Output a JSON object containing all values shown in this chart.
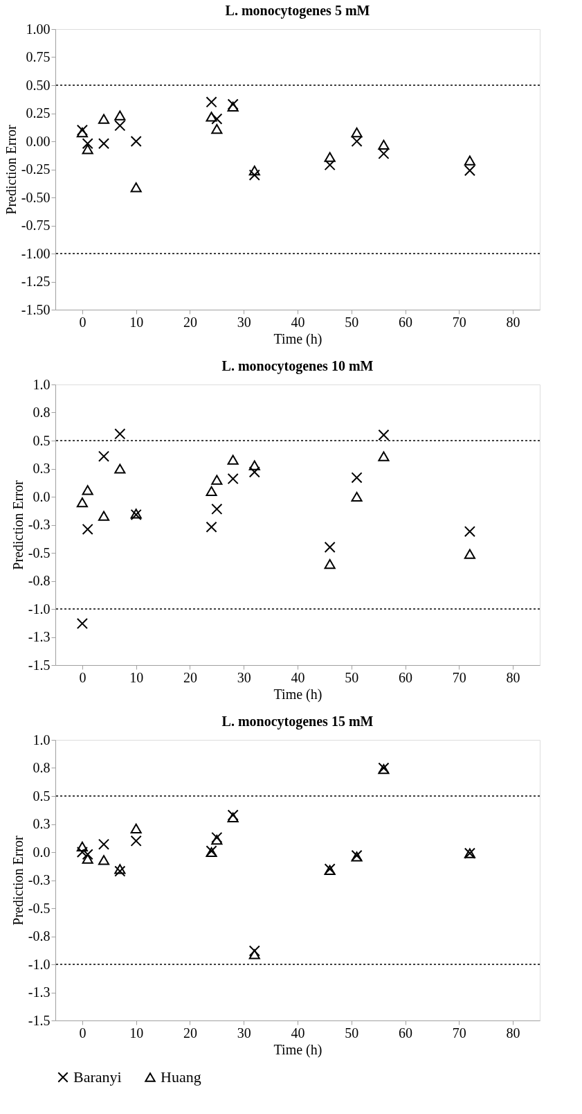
{
  "chart_data": [
    {
      "type": "scatter",
      "title": "L. monocytogenes 5 mM",
      "xlabel": "Time (h)",
      "ylabel": "Prediction Error",
      "x": [
        0,
        1,
        4,
        7,
        10,
        24,
        25,
        28,
        32,
        46,
        51,
        56,
        72
      ],
      "series": [
        {
          "name": "Baranyi",
          "color": "#000000",
          "marker": "cross",
          "values": [
            0.1,
            -0.02,
            -0.02,
            0.14,
            0.0,
            0.35,
            0.2,
            0.33,
            -0.3,
            -0.21,
            0.0,
            -0.11,
            -0.26
          ]
        },
        {
          "name": "Huang",
          "color": "#000000",
          "marker": "triangle",
          "values": [
            0.08,
            -0.07,
            0.2,
            0.23,
            -0.41,
            0.22,
            0.11,
            0.31,
            -0.26,
            -0.14,
            0.08,
            -0.03,
            -0.17
          ]
        }
      ],
      "xlim": [
        -5,
        85
      ],
      "xticks": [
        0,
        10,
        20,
        30,
        40,
        50,
        60,
        70,
        80
      ],
      "ylim": [
        -1.5,
        1.0
      ],
      "yticks": [
        {
          "value": 1.0,
          "label": "1.00"
        },
        {
          "value": 0.75,
          "label": "0.75"
        },
        {
          "value": 0.5,
          "label": "0.50"
        },
        {
          "value": 0.25,
          "label": "0.25"
        },
        {
          "value": 0.0,
          "label": "0.00"
        },
        {
          "value": -0.25,
          "label": "-0.25"
        },
        {
          "value": -0.5,
          "label": "-0.50"
        },
        {
          "value": -0.75,
          "label": "-0.75"
        },
        {
          "value": -1.0,
          "label": "-1.00"
        },
        {
          "value": -1.25,
          "label": "-1.25"
        },
        {
          "value": -1.5,
          "label": "-1.50"
        }
      ],
      "ref_lines": [
        {
          "axis": "y",
          "value": 0.5,
          "color": "#000000",
          "line_style": "dotted"
        },
        {
          "axis": "y",
          "value": -1.0,
          "color": "#000000",
          "line_style": "dotted"
        }
      ],
      "grid": false,
      "legend": "bottom"
    },
    {
      "type": "scatter",
      "title": "L. monocytogenes 10 mM",
      "xlabel": "Time (h)",
      "ylabel": "Prediction Error",
      "x": [
        0,
        1,
        4,
        7,
        10,
        24,
        25,
        28,
        32,
        46,
        51,
        56,
        72
      ],
      "series": [
        {
          "name": "Baranyi",
          "color": "#000000",
          "marker": "cross",
          "values": [
            -1.13,
            -0.29,
            0.36,
            0.56,
            -0.16,
            -0.27,
            -0.11,
            0.16,
            0.22,
            -0.45,
            0.17,
            0.55,
            -0.31
          ]
        },
        {
          "name": "Huang",
          "color": "#000000",
          "marker": "triangle",
          "values": [
            -0.05,
            0.06,
            -0.17,
            0.25,
            -0.15,
            0.05,
            0.15,
            0.33,
            0.28,
            -0.6,
            0.0,
            0.36,
            -0.51
          ]
        }
      ],
      "xlim": [
        -5,
        85
      ],
      "xticks": [
        0,
        10,
        20,
        30,
        40,
        50,
        60,
        70,
        80
      ],
      "ylim": [
        -1.5,
        1.0
      ],
      "yticks": [
        {
          "value": 1.0,
          "label": "1.0"
        },
        {
          "value": 0.75,
          "label": "0.8"
        },
        {
          "value": 0.5,
          "label": "0.5"
        },
        {
          "value": 0.25,
          "label": "0.3"
        },
        {
          "value": 0.0,
          "label": "0.0"
        },
        {
          "value": -0.25,
          "label": "-0.3"
        },
        {
          "value": -0.5,
          "label": "-0.5"
        },
        {
          "value": -0.75,
          "label": "-0.8"
        },
        {
          "value": -1.0,
          "label": "-1.0"
        },
        {
          "value": -1.25,
          "label": "-1.3"
        },
        {
          "value": -1.5,
          "label": "-1.5"
        }
      ],
      "ref_lines": [
        {
          "axis": "y",
          "value": 0.5,
          "color": "#000000",
          "line_style": "dotted"
        },
        {
          "axis": "y",
          "value": -1.0,
          "color": "#000000",
          "line_style": "dotted"
        }
      ],
      "grid": false,
      "legend": "bottom"
    },
    {
      "type": "scatter",
      "title": "L. monocytogenes 15 mM",
      "xlabel": "Time (h)",
      "ylabel": "Prediction Error",
      "x": [
        0,
        1,
        4,
        7,
        10,
        24,
        25,
        28,
        32,
        46,
        51,
        56,
        72
      ],
      "series": [
        {
          "name": "Baranyi",
          "color": "#000000",
          "marker": "cross",
          "values": [
            0.0,
            -0.02,
            0.07,
            -0.17,
            0.1,
            0.01,
            0.13,
            0.33,
            -0.88,
            -0.15,
            -0.03,
            0.75,
            -0.01
          ]
        },
        {
          "name": "Huang",
          "color": "#000000",
          "marker": "triangle",
          "values": [
            0.05,
            -0.06,
            -0.07,
            -0.15,
            0.21,
            0.0,
            0.11,
            0.31,
            -0.91,
            -0.16,
            -0.04,
            0.74,
            -0.01
          ]
        }
      ],
      "xlim": [
        -5,
        85
      ],
      "xticks": [
        0,
        10,
        20,
        30,
        40,
        50,
        60,
        70,
        80
      ],
      "ylim": [
        -1.5,
        1.0
      ],
      "yticks": [
        {
          "value": 1.0,
          "label": "1.0"
        },
        {
          "value": 0.75,
          "label": "0.8"
        },
        {
          "value": 0.5,
          "label": "0.5"
        },
        {
          "value": 0.25,
          "label": "0.3"
        },
        {
          "value": 0.0,
          "label": "0.0"
        },
        {
          "value": -0.25,
          "label": "-0.3"
        },
        {
          "value": -0.5,
          "label": "-0.5"
        },
        {
          "value": -0.75,
          "label": "-0.8"
        },
        {
          "value": -1.0,
          "label": "-1.0"
        },
        {
          "value": -1.25,
          "label": "-1.3"
        },
        {
          "value": -1.5,
          "label": "-1.5"
        }
      ],
      "ref_lines": [
        {
          "axis": "y",
          "value": 0.5,
          "color": "#000000",
          "line_style": "dotted"
        },
        {
          "axis": "y",
          "value": -1.0,
          "color": "#000000",
          "line_style": "dotted"
        }
      ],
      "grid": false,
      "legend": "bottom"
    }
  ]
}
